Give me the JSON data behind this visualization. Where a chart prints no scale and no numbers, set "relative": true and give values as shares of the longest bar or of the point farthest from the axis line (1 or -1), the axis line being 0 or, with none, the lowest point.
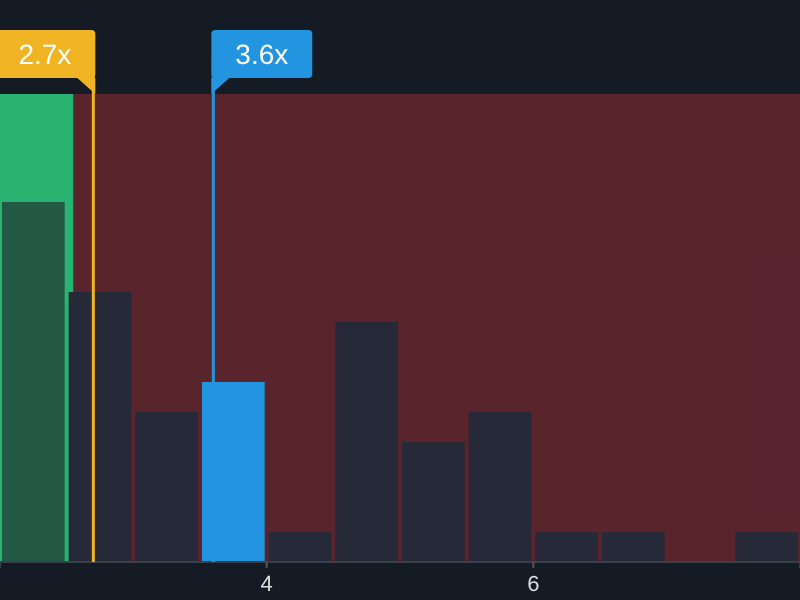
{
  "chart_data": {
    "type": "bar",
    "relative": true,
    "x": [
      2.25,
      2.75,
      3.25,
      3.75,
      4.25,
      4.75,
      5.25,
      5.75,
      6.25,
      6.75,
      7.25,
      7.75
    ],
    "values": [
      1,
      0.75,
      0.417,
      0.5,
      0.083,
      0.667,
      0.333,
      0.417,
      0.083,
      0.083,
      0,
      0.083
    ],
    "colors": [
      "#235845",
      "#262a38",
      "#262a38",
      "#2394e0",
      "#262a38",
      "#262a38",
      "#262a38",
      "#262a38",
      "#262a38",
      "#262a38",
      "#262a38",
      "#262a38"
    ],
    "xlim": [
      2,
      8
    ],
    "xticks": [
      4,
      6
    ],
    "ref_lines": [
      {
        "axis": "x",
        "value": 2.7,
        "label": "2.7x",
        "color": "#f0b323"
      },
      {
        "axis": "x",
        "value": 3.6,
        "label": "3.6x",
        "color": "#2394e0"
      }
    ],
    "bands": [
      {
        "axis": "x",
        "from": 2,
        "to": 2.55,
        "color": "#2ecc7f"
      },
      {
        "axis": "x",
        "from": 2.55,
        "to": 8,
        "color": "#c0313a"
      }
    ]
  }
}
